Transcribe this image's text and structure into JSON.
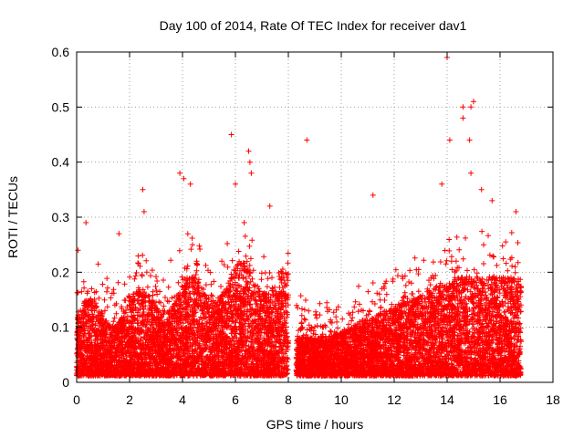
{
  "chart_data": {
    "type": "scatter",
    "title": "Day 100 of 2014, Rate Of TEC Index for receiver dav1",
    "xlabel": "GPS time / hours",
    "ylabel": "ROTI / TECUs",
    "xlim": [
      0,
      18
    ],
    "ylim": [
      0,
      0.6
    ],
    "xticks": [
      0,
      2,
      4,
      6,
      8,
      10,
      12,
      14,
      16,
      18
    ],
    "xtick_labels": [
      "0",
      "2",
      "4",
      "6",
      "8",
      "10",
      "12",
      "14",
      "16",
      "18"
    ],
    "yticks": [
      0,
      0.1,
      0.2,
      0.3,
      0.4,
      0.5,
      0.6
    ],
    "ytick_labels": [
      "0",
      "0.1",
      "0.2",
      "0.3",
      "0.4",
      "0.5",
      "0.6"
    ],
    "grid": true,
    "marker": "+",
    "color": "#ff0000",
    "series": [
      {
        "name": "ROTI",
        "coverage": [
          [
            0.0,
            8.0
          ],
          [
            8.3,
            16.8
          ]
        ],
        "outliers": [
          {
            "x": 0.05,
            "y": 0.24
          },
          {
            "x": 0.35,
            "y": 0.29
          },
          {
            "x": 1.6,
            "y": 0.27
          },
          {
            "x": 2.5,
            "y": 0.35
          },
          {
            "x": 2.55,
            "y": 0.31
          },
          {
            "x": 3.9,
            "y": 0.38
          },
          {
            "x": 4.05,
            "y": 0.37
          },
          {
            "x": 4.3,
            "y": 0.36
          },
          {
            "x": 5.85,
            "y": 0.45
          },
          {
            "x": 6.0,
            "y": 0.36
          },
          {
            "x": 6.5,
            "y": 0.42
          },
          {
            "x": 6.55,
            "y": 0.4
          },
          {
            "x": 6.6,
            "y": 0.38
          },
          {
            "x": 7.3,
            "y": 0.32
          },
          {
            "x": 8.7,
            "y": 0.44
          },
          {
            "x": 11.2,
            "y": 0.34
          },
          {
            "x": 13.8,
            "y": 0.36
          },
          {
            "x": 14.0,
            "y": 0.59
          },
          {
            "x": 14.1,
            "y": 0.44
          },
          {
            "x": 14.6,
            "y": 0.5
          },
          {
            "x": 14.6,
            "y": 0.48
          },
          {
            "x": 14.9,
            "y": 0.5
          },
          {
            "x": 15.0,
            "y": 0.51
          },
          {
            "x": 14.85,
            "y": 0.44
          },
          {
            "x": 14.9,
            "y": 0.38
          },
          {
            "x": 15.3,
            "y": 0.35
          },
          {
            "x": 15.7,
            "y": 0.33
          },
          {
            "x": 16.6,
            "y": 0.31
          }
        ]
      }
    ]
  }
}
